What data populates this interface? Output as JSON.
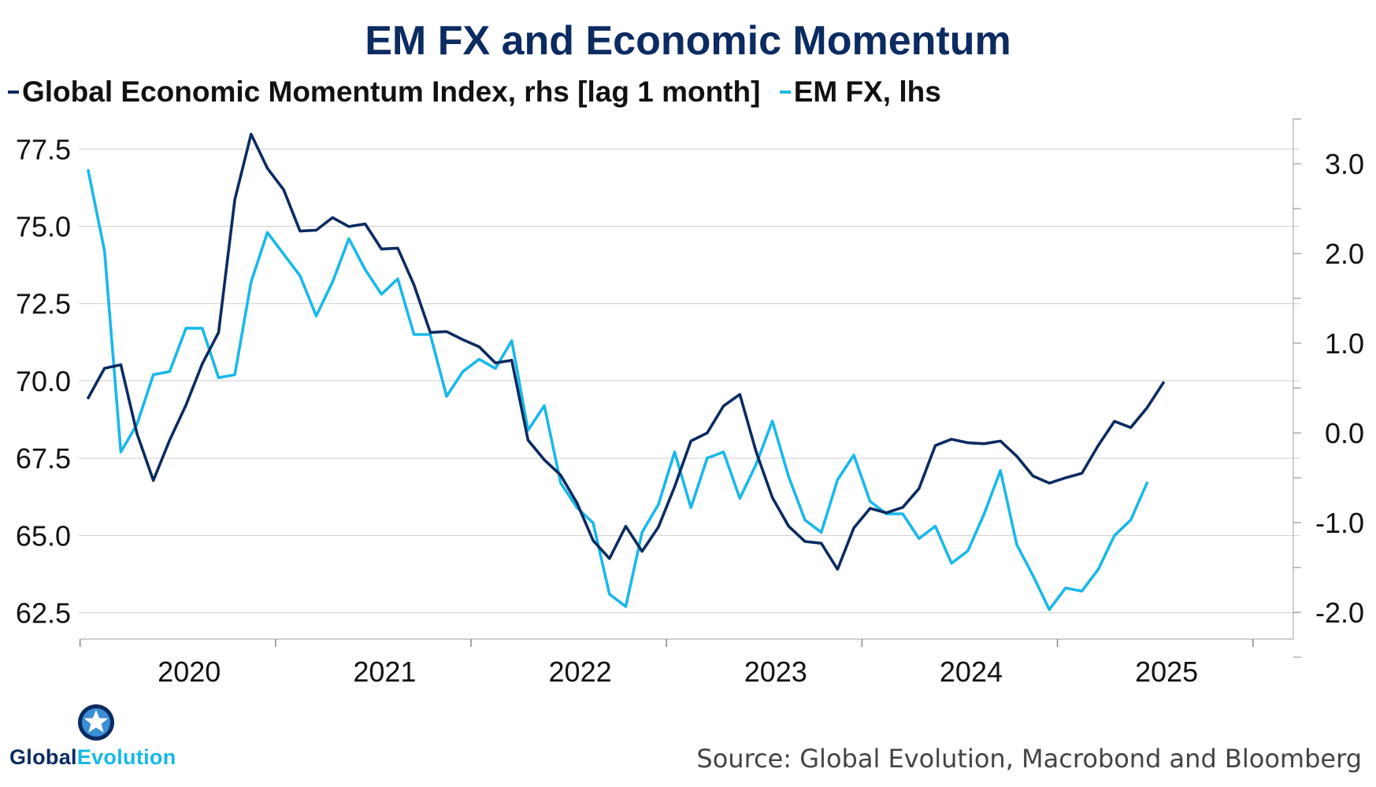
{
  "title": "EM FX and Economic Momentum",
  "legend": [
    {
      "label": "Global Economic Momentum Index, rhs [lag 1 month]",
      "color": "#0b2b61"
    },
    {
      "label": "EM FX, lhs",
      "color": "#19b8ea"
    }
  ],
  "source": "Source: Global Evolution, Macrobond and Bloomberg",
  "logo": {
    "text_part1": "Global",
    "text_part2": "Evolution"
  },
  "chart_data": {
    "type": "line",
    "title": "EM FX and Economic Momentum",
    "x_start": "2019-12",
    "x_labels": [
      "2020",
      "2021",
      "2022",
      "2023",
      "2024",
      "2025"
    ],
    "left_axis": {
      "label": "EM FX",
      "ylim": [
        61.7,
        78.5
      ],
      "ticks": [
        62.5,
        65.0,
        67.5,
        70.0,
        72.5,
        75.0,
        77.5
      ],
      "tick_labels": [
        "62.5",
        "65.0",
        "67.5",
        "70.0",
        "72.5",
        "75.0",
        "77.5"
      ]
    },
    "right_axis": {
      "label": "Global Economic Momentum Index",
      "ylim": [
        -2.28,
        3.51
      ],
      "ticks": [
        -2.0,
        -1.0,
        0.0,
        1.0,
        2.0,
        3.0
      ],
      "tick_labels": [
        "-2.0",
        "-1.0",
        "0.0",
        "1.0",
        "2.0",
        "3.0"
      ]
    },
    "series": [
      {
        "name": "Global Economic Momentum Index, rhs [lag 1 month]",
        "axis": "right",
        "color": "#0b2b61",
        "values": [
          0.39,
          0.72,
          0.76,
          -0.01,
          -0.53,
          -0.08,
          0.31,
          0.77,
          1.12,
          2.6,
          3.33,
          2.95,
          2.71,
          2.25,
          2.26,
          2.4,
          2.3,
          2.33,
          2.05,
          2.06,
          1.65,
          1.12,
          1.13,
          1.04,
          0.96,
          0.78,
          0.81,
          -0.08,
          -0.3,
          -0.47,
          -0.78,
          -1.2,
          -1.4,
          -1.04,
          -1.32,
          -1.05,
          -0.6,
          -0.09,
          0.0,
          0.3,
          0.43,
          -0.21,
          -0.72,
          -1.04,
          -1.21,
          -1.23,
          -1.52,
          -1.06,
          -0.84,
          -0.89,
          -0.83,
          -0.62,
          -0.14,
          -0.07,
          -0.11,
          -0.12,
          -0.09,
          -0.26,
          -0.48,
          -0.56,
          -0.5,
          -0.45,
          -0.14,
          0.13,
          0.06,
          0.28,
          0.56
        ]
      },
      {
        "name": "EM FX, lhs",
        "axis": "left",
        "color": "#19b8ea",
        "values": [
          76.8,
          74.2,
          67.7,
          68.6,
          70.2,
          70.3,
          71.7,
          71.7,
          70.1,
          70.2,
          73.2,
          74.8,
          74.1,
          73.4,
          72.1,
          73.2,
          74.6,
          73.6,
          72.8,
          73.3,
          71.5,
          71.5,
          69.5,
          70.3,
          70.7,
          70.4,
          71.3,
          68.4,
          69.2,
          66.7,
          65.9,
          65.4,
          63.1,
          62.7,
          65.1,
          66.0,
          67.7,
          65.9,
          67.5,
          67.7,
          66.2,
          67.3,
          68.7,
          66.9,
          65.5,
          65.1,
          66.8,
          67.6,
          66.1,
          65.7,
          65.7,
          64.9,
          65.3,
          64.1,
          64.5,
          65.7,
          67.1,
          64.7,
          63.7,
          62.6,
          63.3,
          63.2,
          63.9,
          65.0,
          65.5,
          66.7
        ]
      }
    ]
  }
}
